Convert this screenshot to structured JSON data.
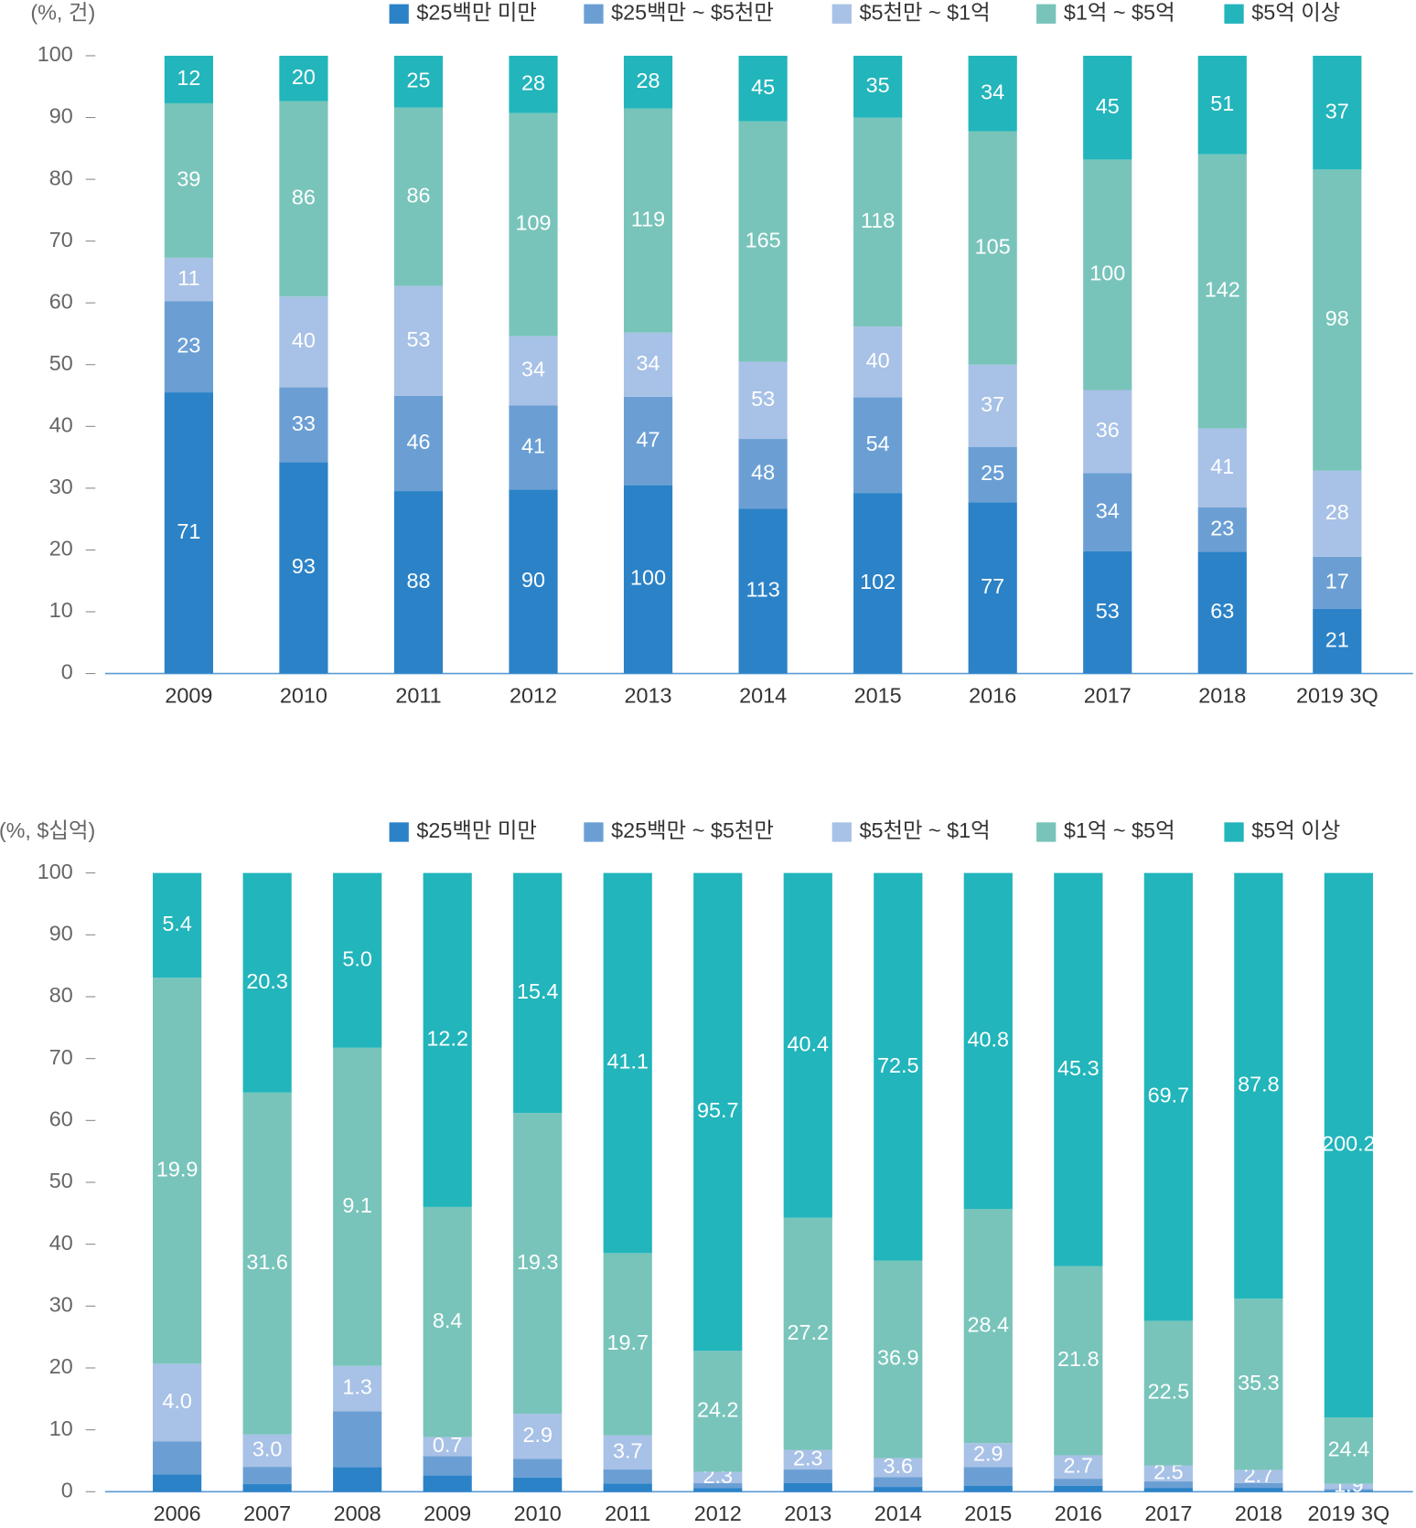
{
  "chart_data": [
    {
      "type": "bar",
      "stacking": "percent",
      "unit": "(%, 건)",
      "legend": "top",
      "categories": [
        "2009",
        "2010",
        "2011",
        "2012",
        "2013",
        "2014",
        "2015",
        "2016",
        "2017",
        "2018",
        "2019 3Q"
      ],
      "ylim": [
        0,
        100
      ],
      "yticks": [
        0,
        10,
        20,
        30,
        40,
        50,
        60,
        70,
        80,
        90,
        100
      ],
      "series": [
        {
          "name": "$25백만 미만",
          "color": "#2b82c7",
          "values": [
            71,
            93,
            88,
            90,
            100,
            113,
            102,
            77,
            53,
            63,
            21
          ]
        },
        {
          "name": "$25백만 ~ $5천만",
          "color": "#6b9fd4",
          "values": [
            23,
            33,
            46,
            41,
            47,
            48,
            54,
            25,
            34,
            23,
            17
          ]
        },
        {
          "name": "$5천만 ~ $1억",
          "color": "#a8c1e6",
          "values": [
            11,
            40,
            53,
            34,
            34,
            53,
            40,
            37,
            36,
            41,
            28
          ]
        },
        {
          "name": "$1억 ~ $5억",
          "color": "#78c4ba",
          "values": [
            39,
            86,
            86,
            109,
            119,
            165,
            118,
            105,
            100,
            142,
            98
          ]
        },
        {
          "name": "$5억 이상",
          "color": "#22b5bb",
          "values": [
            12,
            20,
            25,
            28,
            28,
            45,
            35,
            34,
            45,
            51,
            37
          ]
        }
      ]
    },
    {
      "type": "bar",
      "stacking": "percent",
      "unit": "(%, $십억)",
      "legend": "top",
      "categories": [
        "2006",
        "2007",
        "2008",
        "2009",
        "2010",
        "2011",
        "2012",
        "2013",
        "2014",
        "2015",
        "2016",
        "2017",
        "2018",
        "2019 3Q"
      ],
      "ylim": [
        0,
        100
      ],
      "yticks": [
        0,
        10,
        20,
        30,
        40,
        50,
        60,
        70,
        80,
        90,
        100
      ],
      "series": [
        {
          "name": "$25백만 미만",
          "color": "#2b82c7",
          "values": [
            0.9,
            0.7,
            0.7,
            0.6,
            0.9,
            0.9,
            0.7,
            1.0,
            0.9,
            0.7,
            0.7,
            0.6,
            0.8,
            0.4
          ],
          "value_labels": [
            null,
            null,
            null,
            null,
            null,
            null,
            null,
            null,
            null,
            null,
            null,
            null,
            null,
            null
          ]
        },
        {
          "name": "$25백만 ~ $5천만",
          "color": "#6b9fd4",
          "values": [
            1.7,
            1.6,
            1.6,
            0.7,
            1.2,
            1.5,
            1.0,
            1.6,
            1.8,
            2.3,
            0.8,
            1.0,
            1.0,
            0.6
          ],
          "value_labels": [
            null,
            null,
            null,
            null,
            null,
            null,
            null,
            null,
            null,
            null,
            null,
            null,
            null,
            null
          ]
        },
        {
          "name": "$5천만 ~ $1억",
          "color": "#a8c1e6",
          "values": [
            4.0,
            3.0,
            1.3,
            0.7,
            2.9,
            3.7,
            2.3,
            2.3,
            3.6,
            2.9,
            2.7,
            2.5,
            2.7,
            1.9
          ],
          "value_labels": [
            "4.0",
            "3.0",
            "1.3",
            "0.7",
            "2.9",
            "3.7",
            "2.3",
            "2.3",
            "3.6",
            "2.9",
            "2.7",
            "2.5",
            "2.7",
            "1.9"
          ]
        },
        {
          "name": "$1억 ~ $5억",
          "color": "#78c4ba",
          "values": [
            19.9,
            31.6,
            9.1,
            8.4,
            19.3,
            19.7,
            24.2,
            27.2,
            36.9,
            28.4,
            21.8,
            22.5,
            35.3,
            24.4
          ],
          "value_labels": [
            "19.9",
            "31.6",
            "9.1",
            "8.4",
            "19.3",
            "19.7",
            "24.2",
            "27.2",
            "36.9",
            "28.4",
            "21.8",
            "22.5",
            "35.3",
            "24.4"
          ]
        },
        {
          "name": "$5억 이상",
          "color": "#22b5bb",
          "values": [
            5.4,
            20.3,
            5.0,
            12.2,
            15.4,
            41.1,
            95.7,
            40.4,
            72.5,
            40.8,
            45.3,
            69.7,
            87.8,
            200.2
          ],
          "value_labels": [
            "5.4",
            "20.3",
            "5.0",
            "12.2",
            "15.4",
            "41.1",
            "95.7",
            "40.4",
            "72.5",
            "40.8",
            "45.3",
            "69.7",
            "87.8",
            "200.2"
          ]
        }
      ]
    }
  ]
}
